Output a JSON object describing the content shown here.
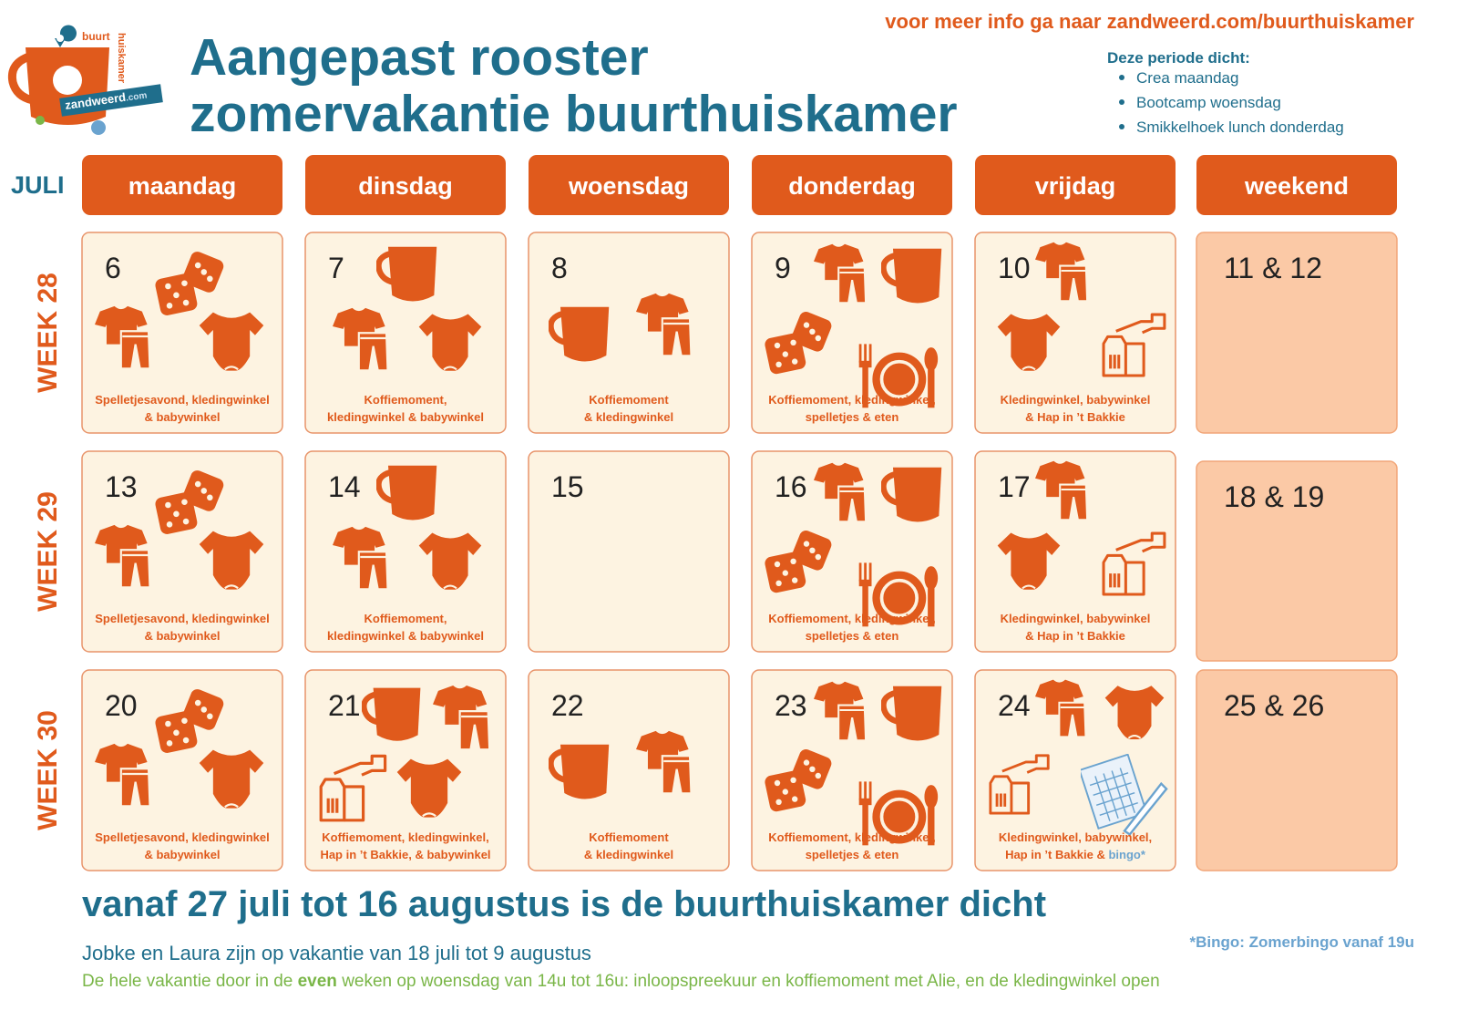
{
  "header": {
    "info": "voor meer info ga naar zandweerd.com/buurthuiskamer",
    "title_lines": [
      "Aangepast rooster",
      "zomervakantie buurthuiskamer"
    ],
    "logo": {
      "top": "buurt",
      "side": "huiskamer",
      "band": "zandweerd",
      "band_suffix": ".com"
    }
  },
  "closed": {
    "title": "Deze periode dicht:",
    "items": [
      "Crea maandag",
      "Bootcamp woensdag",
      "Smikkelhoek lunch donderdag"
    ]
  },
  "month": "JULI",
  "days": [
    "maandag",
    "dinsdag",
    "woensdag",
    "donderdag",
    "vrijdag",
    "weekend"
  ],
  "weeks": [
    {
      "label": "WEEK 28",
      "cells": [
        {
          "date": "6",
          "caption": [
            [
              "Spelletjesavond, kledingwinkel"
            ],
            [
              "& babywinkel"
            ]
          ]
        },
        {
          "date": "7",
          "caption": [
            [
              "Koffiemoment,"
            ],
            [
              "kledingwinkel & babywinkel"
            ]
          ]
        },
        {
          "date": "8",
          "caption": [
            [
              "Koffiemoment"
            ],
            [
              "& kledingwinkel"
            ]
          ]
        },
        {
          "date": "9",
          "caption": [
            [
              "Koffiemoment, kledingwinkel,"
            ],
            [
              "spelletjes & eten"
            ]
          ]
        },
        {
          "date": "10",
          "caption": [
            [
              "Kledingwinkel, babywinkel"
            ],
            [
              "& Hap in ’t Bakkie"
            ]
          ]
        },
        {
          "date": "11 & 12",
          "caption": []
        }
      ]
    },
    {
      "label": "WEEK 29",
      "cells": [
        {
          "date": "13",
          "caption": [
            [
              "Spelletjesavond, kledingwinkel"
            ],
            [
              "& babywinkel"
            ]
          ]
        },
        {
          "date": "14",
          "caption": [
            [
              "Koffiemoment,"
            ],
            [
              "kledingwinkel & babywinkel"
            ]
          ]
        },
        {
          "date": "15",
          "caption": []
        },
        {
          "date": "16",
          "caption": [
            [
              "Koffiemoment, kledingwinkel,"
            ],
            [
              "spelletjes & eten"
            ]
          ]
        },
        {
          "date": "17",
          "caption": [
            [
              "Kledingwinkel, babywinkel"
            ],
            [
              "& Hap in ’t Bakkie"
            ]
          ]
        },
        {
          "date": "18 & 19",
          "caption": []
        }
      ]
    },
    {
      "label": "WEEK 30",
      "cells": [
        {
          "date": "20",
          "caption": [
            [
              "Spelletjesavond, kledingwinkel"
            ],
            [
              "& babywinkel"
            ]
          ]
        },
        {
          "date": "21",
          "caption": [
            [
              "Koffiemoment, kledingwinkel,"
            ],
            [
              "Hap in ’t Bakkie, & babywinkel"
            ]
          ]
        },
        {
          "date": "22",
          "caption": [
            [
              "Koffiemoment"
            ],
            [
              "& kledingwinkel"
            ]
          ]
        },
        {
          "date": "23",
          "caption": [
            [
              "Koffiemoment, kledingwinkel,"
            ],
            [
              "spelletjes & eten"
            ]
          ]
        },
        {
          "date": "24",
          "caption": [
            [
              "Kledingwinkel, babywinkel,"
            ],
            [
              "Hap in ’t Bakkie & ",
              "bingo*"
            ]
          ]
        },
        {
          "date": "25 & 26",
          "caption": []
        }
      ]
    }
  ],
  "footer": {
    "closed_period": "vanaf 27 juli tot 16 augustus is de buurthuiskamer dicht",
    "holiday": "Jobke en Laura zijn op vakantie van 18 juli tot 9 augustus",
    "note": [
      "De hele vakantie door in de ",
      "even",
      " weken op woensdag van 14u tot 16u: inloopspreekuur en koffiemoment met Alie, en de kledingwinkel open"
    ],
    "footnote": "*Bingo: Zomerbingo vanaf 19u"
  }
}
